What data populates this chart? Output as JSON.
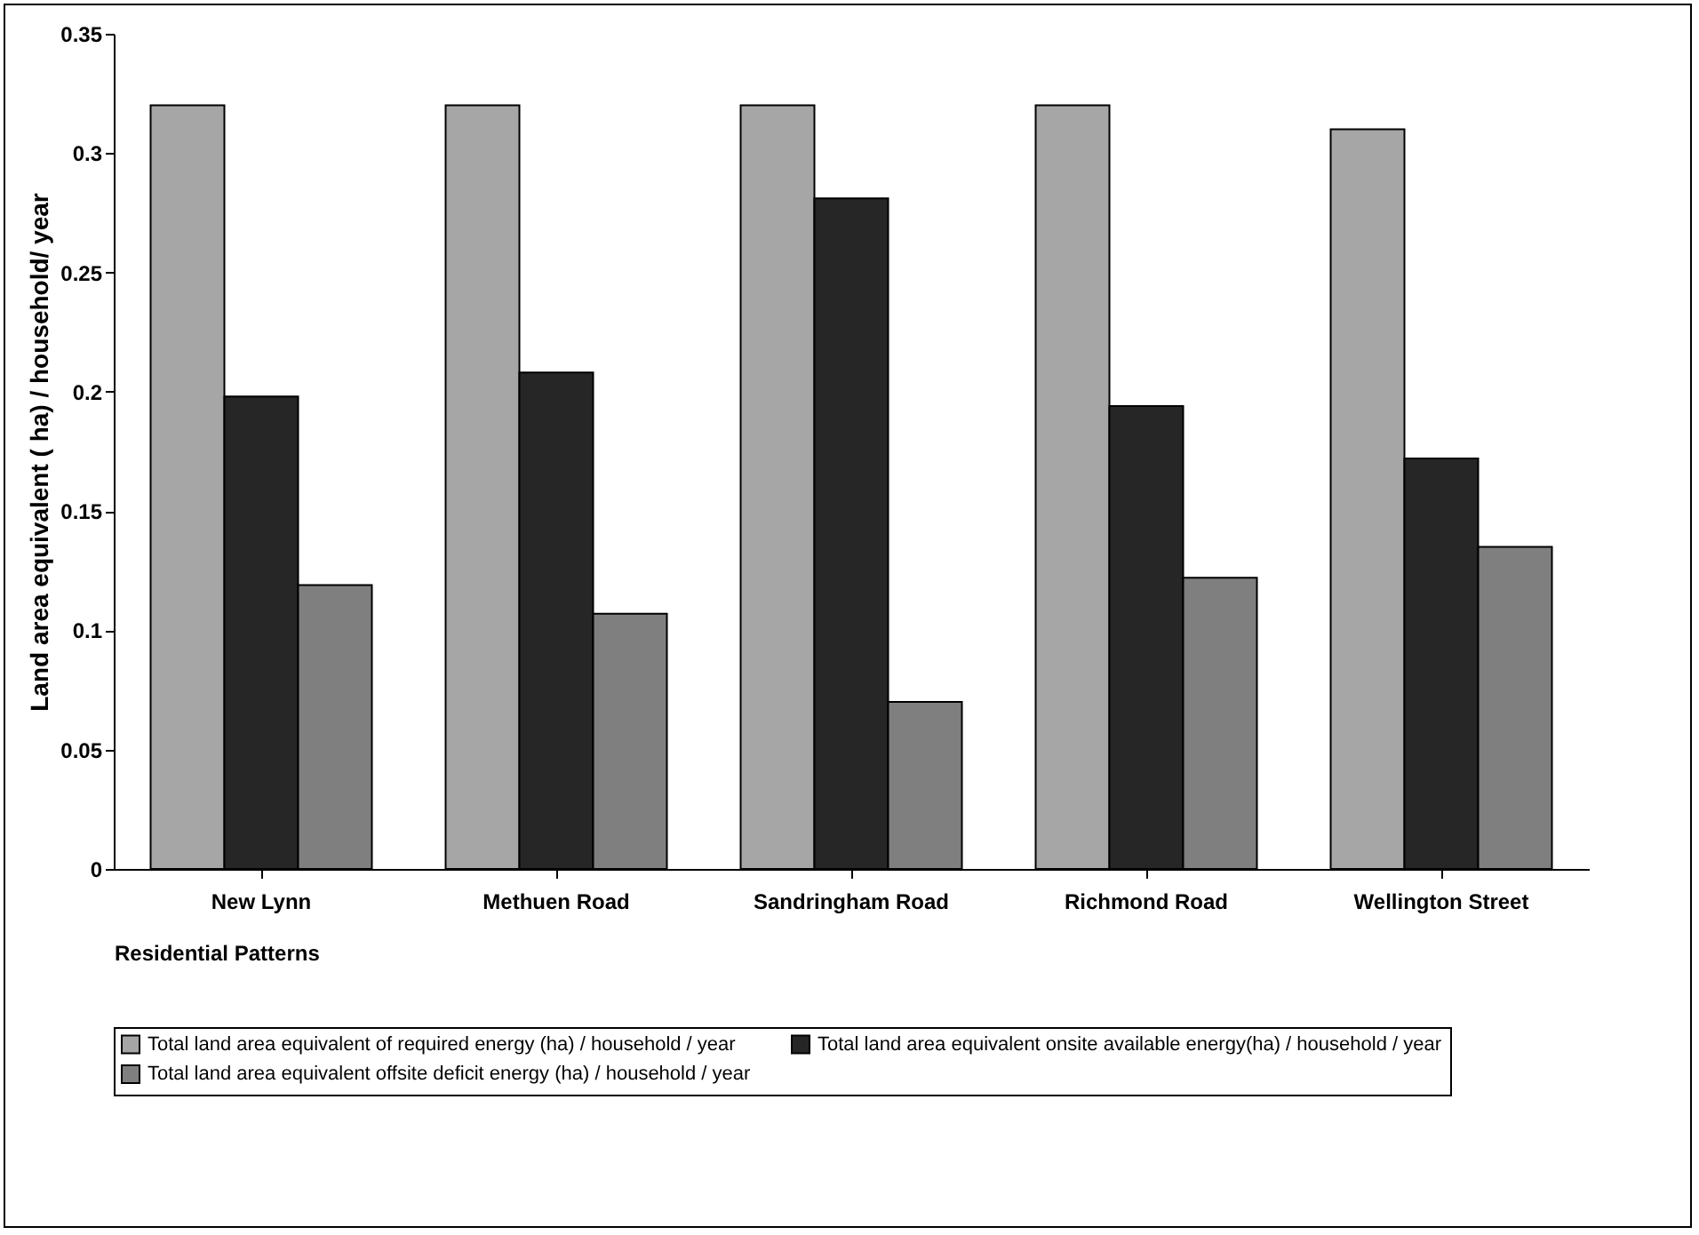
{
  "chart_data": {
    "type": "bar",
    "xlabel": "Residential Patterns",
    "ylabel": "Land area equivalent ( ha) / household/ year",
    "categories": [
      "New Lynn",
      "Methuen Road",
      "Sandringham Road",
      "Richmond Road",
      "Wellington Street"
    ],
    "series": [
      {
        "name": "Total land area equivalent of required energy (ha) / household / year",
        "color": "#a6a6a6",
        "values": [
          0.32,
          0.32,
          0.32,
          0.32,
          0.31
        ]
      },
      {
        "name": "Total land area equivalent onsite available energy(ha) / household / year",
        "color": "#262626",
        "values": [
          0.198,
          0.208,
          0.281,
          0.194,
          0.172
        ]
      },
      {
        "name": "Total land area equivalent offsite deficit energy (ha) / household / year",
        "color": "#7f7f7f",
        "values": [
          0.119,
          0.107,
          0.07,
          0.122,
          0.135
        ]
      }
    ],
    "ylim": [
      0,
      0.35
    ],
    "yticks": [
      0,
      0.05,
      0.1,
      0.15,
      0.2,
      0.25,
      0.3,
      0.35
    ],
    "grid": false,
    "legend": "bottom"
  }
}
